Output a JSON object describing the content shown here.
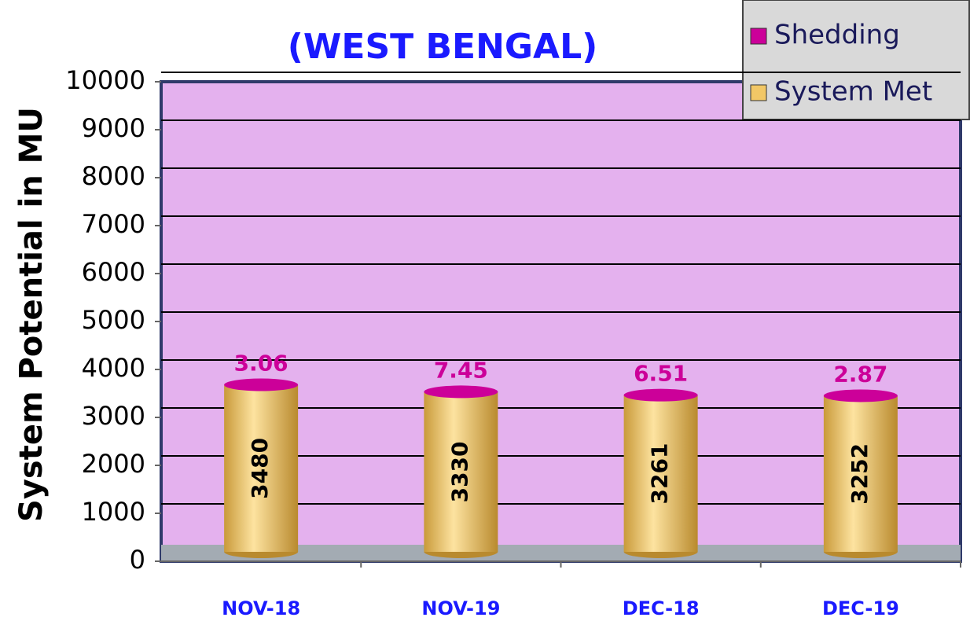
{
  "chart_data": {
    "type": "bar",
    "stacked": true,
    "title": "(WEST BENGAL)",
    "y_label": "System Potential in MU",
    "categories": [
      "NOV-18",
      "NOV-19",
      "DEC-18",
      "DEC-19"
    ],
    "series": [
      {
        "name": "System Met",
        "color": "#f2c766",
        "values": [
          3480,
          3330,
          3261,
          3252
        ]
      },
      {
        "name": "Shedding",
        "color": "#cc0099",
        "values": [
          3.06,
          7.45,
          6.51,
          2.87
        ]
      }
    ],
    "ylim": [
      0,
      10000
    ],
    "yticks": [
      0,
      1000,
      2000,
      3000,
      4000,
      5000,
      6000,
      7000,
      8000,
      9000,
      10000
    ],
    "grid": true,
    "legend": "upper right"
  }
}
